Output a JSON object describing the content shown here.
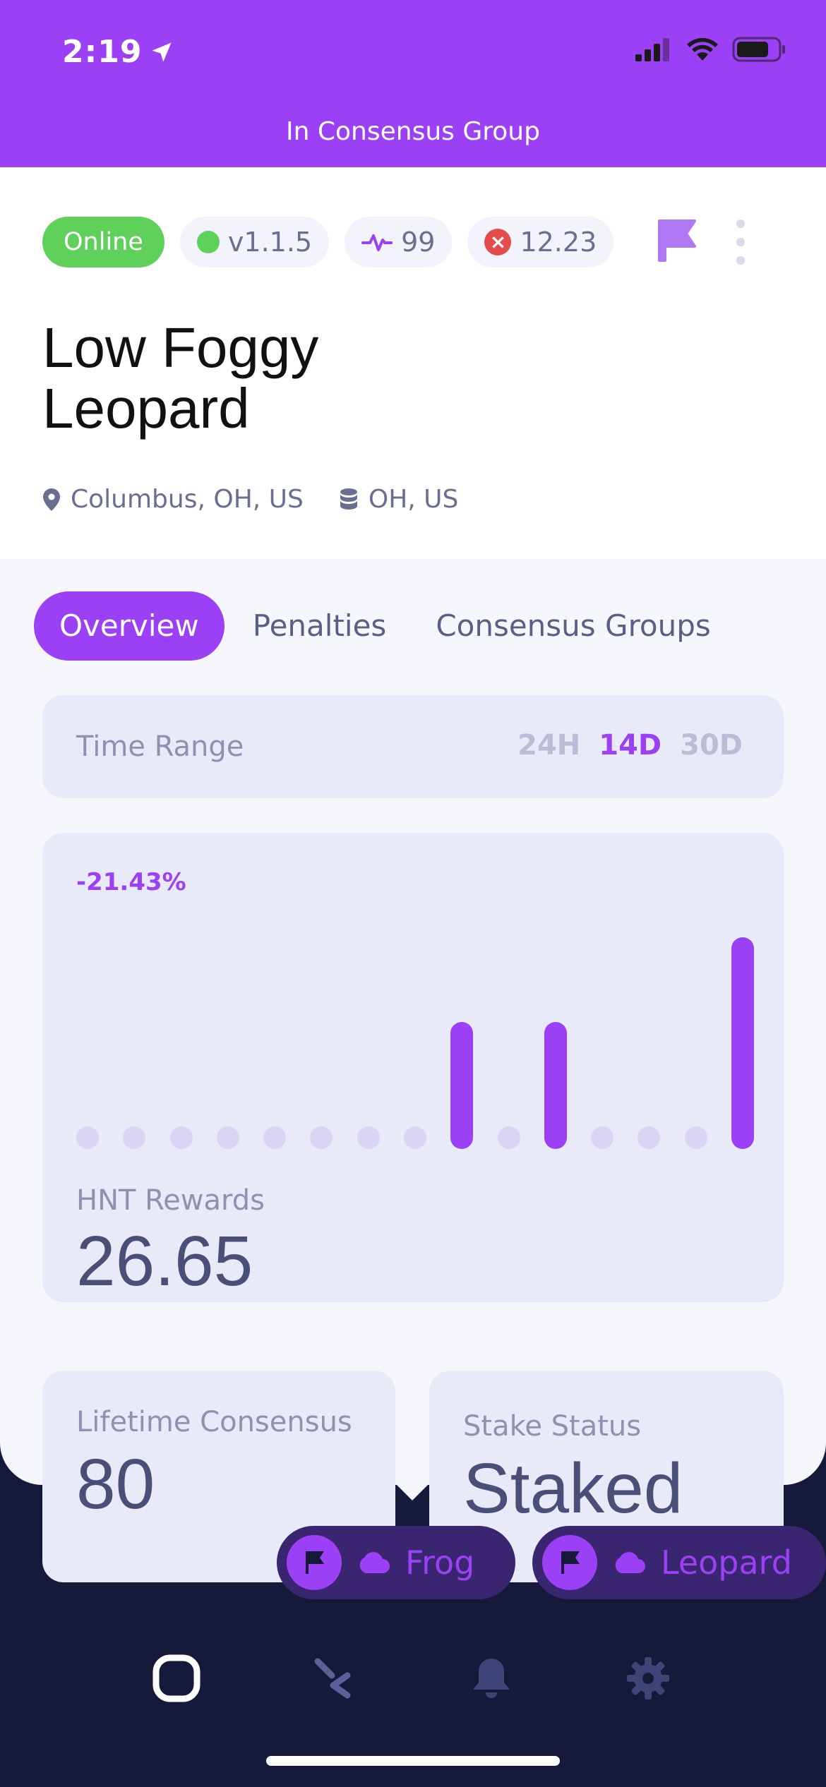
{
  "status_bar": {
    "time": "2:19"
  },
  "header": {
    "banner": "In Consensus Group"
  },
  "hotspot": {
    "status": "Online",
    "version": "v1.1.5",
    "activity": "99",
    "penalty": "12.23",
    "name_first": "Low Foggy",
    "name_last": "Leopard",
    "location": "Columbus, OH, US",
    "region": "OH, US"
  },
  "tabs": [
    {
      "label": "Overview",
      "active": true
    },
    {
      "label": "Penalties",
      "active": false
    },
    {
      "label": "Consensus Groups",
      "active": false
    }
  ],
  "time_range": {
    "label": "Time Range",
    "options": [
      "24H",
      "14D",
      "30D"
    ],
    "selected": "14D"
  },
  "rewards": {
    "change_pct": "-21.43%",
    "label": "HNT Rewards",
    "value": "26.65"
  },
  "chart_data": {
    "type": "bar",
    "values": [
      0,
      0,
      0,
      0,
      0,
      0,
      0,
      0,
      6,
      0,
      6,
      0,
      0,
      0,
      10
    ],
    "ylim": [
      0,
      10
    ]
  },
  "cards": {
    "lifetime_label": "Lifetime Consensus",
    "lifetime_value": "80",
    "stake_label": "Stake Status",
    "stake_value": "Staked"
  },
  "chips": [
    {
      "name": "Frog"
    },
    {
      "name": "Leopard"
    }
  ],
  "colors": {
    "accent": "#9b40f4",
    "online": "#5fd05a",
    "nav_bg": "#161a3a"
  },
  "icons": {
    "nav": [
      "home-square-icon",
      "explore-icon",
      "bell-icon",
      "gear-icon"
    ]
  }
}
